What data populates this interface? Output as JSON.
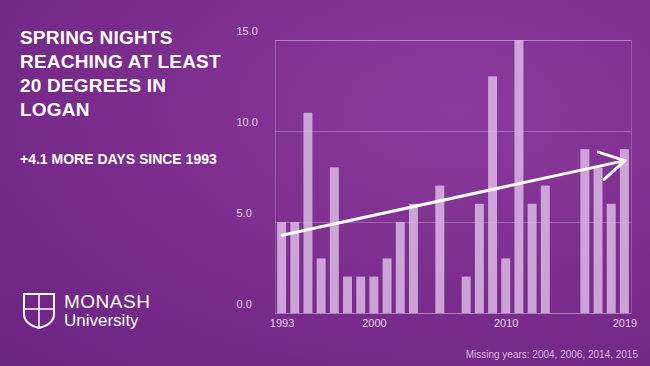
{
  "chart_data": {
    "type": "bar",
    "title": "SPRING NIGHTS REACHING AT LEAST 20 DEGREES IN LOGAN",
    "subtitle": "+4.1 MORE DAYS SINCE 1993",
    "x": [
      1993,
      1994,
      1995,
      1996,
      1997,
      1998,
      1999,
      2000,
      2001,
      2002,
      2003,
      2005,
      2007,
      2008,
      2009,
      2010,
      2011,
      2012,
      2013,
      2016,
      2017,
      2018,
      2019
    ],
    "values": [
      5,
      5,
      11,
      3,
      8,
      2,
      2,
      2,
      3,
      5,
      6,
      7,
      2,
      6,
      13,
      3,
      15,
      6,
      7,
      9,
      8,
      6,
      9
    ],
    "color": "#d9b8e3",
    "xlim": [
      1992.5,
      2019.5
    ],
    "xticks": [
      1993,
      2000,
      2010,
      2019
    ],
    "ylim": [
      0,
      15
    ],
    "yticks": [
      {
        "value": 0,
        "label": "0.0"
      },
      {
        "value": 5,
        "label": "5.0"
      },
      {
        "value": 10,
        "label": "10.0"
      },
      {
        "value": 15,
        "label": "15.0"
      }
    ],
    "grid": true,
    "trend": {
      "x": [
        1993,
        2019
      ],
      "values": [
        4.3,
        8.4
      ],
      "color": "#ffffff"
    },
    "annotations": [
      "Missing years: 2004, 2006, 2014, 2015"
    ],
    "logo": [
      "MONASH",
      "University"
    ]
  }
}
